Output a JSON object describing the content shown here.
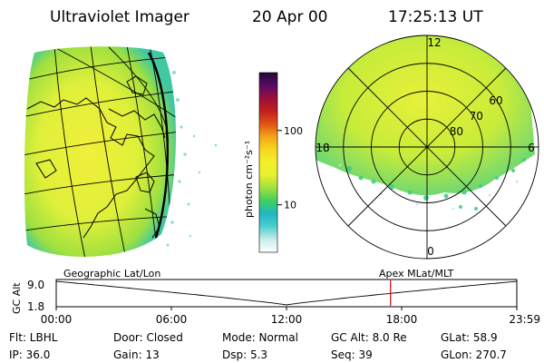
{
  "header": {
    "title": "Ultraviolet Imager",
    "date": "20 Apr 00",
    "time": "17:25:13 UT"
  },
  "colorbar": {
    "label": "photon cm⁻²s⁻¹",
    "ticks": [
      {
        "value": 10,
        "label": "10"
      },
      {
        "value": 100,
        "label": "100"
      }
    ],
    "range": [
      2.3,
      600
    ],
    "scale": "log",
    "colors": [
      "#ffffff",
      "#c9ecec",
      "#4fcfcf",
      "#1fb7c3",
      "#3fcf5f",
      "#9fe03f",
      "#e6f02f",
      "#f2f02a",
      "#f6d81f",
      "#f5a418",
      "#e05515",
      "#c21f1f",
      "#9a0f3a",
      "#5a0a66",
      "#200a33"
    ]
  },
  "left_panel": {
    "label": "Geographic Lat/Lon"
  },
  "right_panel": {
    "label": "Apex MLat/MLT",
    "lat_rings": [
      {
        "lat": 80,
        "label": "80"
      },
      {
        "lat": 70,
        "label": "70"
      },
      {
        "lat": 60,
        "label": "60"
      }
    ],
    "mlt_labels": [
      {
        "mlt": 12,
        "label": "12"
      },
      {
        "mlt": 6,
        "label": "6"
      },
      {
        "mlt": 18,
        "label": "18"
      },
      {
        "mlt": 0,
        "label": "0"
      }
    ]
  },
  "altitude_plot": {
    "ylabel": "GC Alt",
    "yticks": [
      "9.0",
      "1.8"
    ],
    "xticks": [
      "00:00",
      "06:00",
      "12:00",
      "18:00",
      "23:59"
    ],
    "marker_time_hours": 17.42,
    "marker_color": "#d00000"
  },
  "info": {
    "flt": "Flt: LBHL",
    "door": "Door: Closed",
    "mode": "Mode: Normal",
    "gc_alt": "GC Alt: 8.0 Re",
    "glat": "GLat:  58.9",
    "ip": "IP: 36.0",
    "gain": "Gain: 13",
    "dsp": "Dsp:     5.3",
    "seq": "Seq: 39",
    "glon": "GLon: 270.7"
  }
}
